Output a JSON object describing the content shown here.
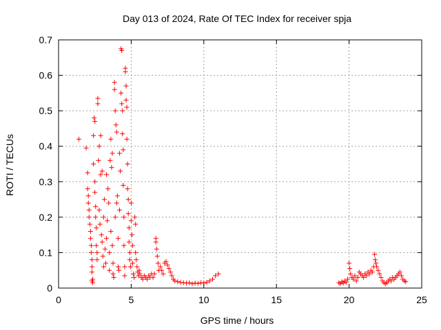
{
  "chart_data": {
    "type": "scatter",
    "title": "Day 013 of 2024, Rate Of TEC Index for receiver spja",
    "xlabel": "GPS time / hours",
    "ylabel": "ROTI / TECUs",
    "xlim": [
      0,
      25
    ],
    "ylim": [
      0,
      0.7
    ],
    "xticks": [
      0,
      5,
      10,
      15,
      20,
      25
    ],
    "yticks": [
      0,
      0.1,
      0.2,
      0.3,
      0.4,
      0.5,
      0.6,
      0.7
    ],
    "xtick_labels": [
      "0",
      "5",
      "10",
      "15",
      "20",
      "25"
    ],
    "ytick_labels": [
      "0",
      "0.1",
      "0.2",
      "0.3",
      "0.4",
      "0.5",
      "0.6",
      "0.7"
    ],
    "grid": true,
    "marker": "+",
    "color": "#ff0000",
    "points": [
      [
        1.4,
        0.42
      ],
      [
        1.9,
        0.395
      ],
      [
        2.0,
        0.325
      ],
      [
        2.0,
        0.28
      ],
      [
        2.05,
        0.26
      ],
      [
        2.05,
        0.24
      ],
      [
        2.1,
        0.22
      ],
      [
        2.1,
        0.2
      ],
      [
        2.15,
        0.18
      ],
      [
        2.2,
        0.16
      ],
      [
        2.2,
        0.14
      ],
      [
        2.25,
        0.12
      ],
      [
        2.25,
        0.1
      ],
      [
        2.3,
        0.08
      ],
      [
        2.3,
        0.06
      ],
      [
        2.3,
        0.045
      ],
      [
        2.3,
        0.02
      ],
      [
        2.35,
        0.015
      ],
      [
        2.35,
        0.025
      ],
      [
        2.4,
        0.35
      ],
      [
        2.4,
        0.43
      ],
      [
        2.45,
        0.48
      ],
      [
        2.5,
        0.47
      ],
      [
        2.5,
        0.3
      ],
      [
        2.5,
        0.27
      ],
      [
        2.55,
        0.23
      ],
      [
        2.55,
        0.2
      ],
      [
        2.6,
        0.17
      ],
      [
        2.6,
        0.12
      ],
      [
        2.65,
        0.1
      ],
      [
        2.65,
        0.08
      ],
      [
        2.7,
        0.52
      ],
      [
        2.7,
        0.535
      ],
      [
        2.75,
        0.36
      ],
      [
        2.8,
        0.4
      ],
      [
        2.8,
        0.22
      ],
      [
        2.85,
        0.18
      ],
      [
        2.9,
        0.43
      ],
      [
        2.9,
        0.32
      ],
      [
        2.95,
        0.15
      ],
      [
        3.0,
        0.33
      ],
      [
        3.0,
        0.13
      ],
      [
        3.05,
        0.09
      ],
      [
        3.1,
        0.06
      ],
      [
        3.1,
        0.2
      ],
      [
        3.15,
        0.25
      ],
      [
        3.2,
        0.11
      ],
      [
        3.25,
        0.07
      ],
      [
        3.3,
        0.14
      ],
      [
        3.3,
        0.32
      ],
      [
        3.35,
        0.19
      ],
      [
        3.4,
        0.28
      ],
      [
        3.45,
        0.24
      ],
      [
        3.5,
        0.1
      ],
      [
        3.5,
        0.05
      ],
      [
        3.55,
        0.36
      ],
      [
        3.6,
        0.42
      ],
      [
        3.6,
        0.16
      ],
      [
        3.65,
        0.34
      ],
      [
        3.7,
        0.38
      ],
      [
        3.7,
        0.12
      ],
      [
        3.75,
        0.07
      ],
      [
        3.75,
        0.04
      ],
      [
        3.8,
        0.03
      ],
      [
        3.85,
        0.56
      ],
      [
        3.85,
        0.58
      ],
      [
        3.9,
        0.5
      ],
      [
        3.9,
        0.2
      ],
      [
        3.95,
        0.46
      ],
      [
        4.0,
        0.44
      ],
      [
        4.0,
        0.24
      ],
      [
        4.05,
        0.26
      ],
      [
        4.1,
        0.14
      ],
      [
        4.1,
        0.06
      ],
      [
        4.15,
        0.05
      ],
      [
        4.2,
        0.38
      ],
      [
        4.2,
        0.22
      ],
      [
        4.25,
        0.33
      ],
      [
        4.3,
        0.55
      ],
      [
        4.3,
        0.675
      ],
      [
        4.35,
        0.67
      ],
      [
        4.35,
        0.52
      ],
      [
        4.4,
        0.5
      ],
      [
        4.4,
        0.435
      ],
      [
        4.45,
        0.39
      ],
      [
        4.45,
        0.29
      ],
      [
        4.5,
        0.2
      ],
      [
        4.5,
        0.12
      ],
      [
        4.55,
        0.06
      ],
      [
        4.55,
        0.035
      ],
      [
        4.6,
        0.62
      ],
      [
        4.6,
        0.61
      ],
      [
        4.65,
        0.57
      ],
      [
        4.65,
        0.53
      ],
      [
        4.7,
        0.51
      ],
      [
        4.7,
        0.42
      ],
      [
        4.75,
        0.35
      ],
      [
        4.75,
        0.28
      ],
      [
        4.8,
        0.25
      ],
      [
        4.8,
        0.21
      ],
      [
        4.85,
        0.17
      ],
      [
        4.85,
        0.13
      ],
      [
        4.9,
        0.1
      ],
      [
        4.9,
        0.08
      ],
      [
        4.95,
        0.06
      ],
      [
        5.0,
        0.24
      ],
      [
        5.0,
        0.19
      ],
      [
        5.05,
        0.15
      ],
      [
        5.1,
        0.12
      ],
      [
        5.1,
        0.07
      ],
      [
        5.15,
        0.04
      ],
      [
        5.2,
        0.03
      ],
      [
        5.25,
        0.2
      ],
      [
        5.3,
        0.18
      ],
      [
        5.3,
        0.1
      ],
      [
        5.35,
        0.08
      ],
      [
        5.4,
        0.06
      ],
      [
        5.45,
        0.045
      ],
      [
        5.5,
        0.035
      ],
      [
        5.55,
        0.05
      ],
      [
        5.6,
        0.04
      ],
      [
        5.7,
        0.03
      ],
      [
        5.8,
        0.025
      ],
      [
        5.9,
        0.035
      ],
      [
        6.0,
        0.03
      ],
      [
        6.1,
        0.025
      ],
      [
        6.2,
        0.035
      ],
      [
        6.3,
        0.03
      ],
      [
        6.4,
        0.04
      ],
      [
        6.5,
        0.03
      ],
      [
        6.6,
        0.04
      ],
      [
        6.7,
        0.14
      ],
      [
        6.7,
        0.13
      ],
      [
        6.75,
        0.11
      ],
      [
        6.8,
        0.09
      ],
      [
        6.85,
        0.07
      ],
      [
        6.9,
        0.05
      ],
      [
        7.0,
        0.06
      ],
      [
        7.1,
        0.05
      ],
      [
        7.2,
        0.04
      ],
      [
        7.3,
        0.07
      ],
      [
        7.4,
        0.075
      ],
      [
        7.5,
        0.065
      ],
      [
        7.6,
        0.055
      ],
      [
        7.7,
        0.045
      ],
      [
        7.8,
        0.035
      ],
      [
        7.9,
        0.025
      ],
      [
        8.0,
        0.02
      ],
      [
        8.2,
        0.018
      ],
      [
        8.4,
        0.016
      ],
      [
        8.6,
        0.015
      ],
      [
        8.8,
        0.014
      ],
      [
        9.0,
        0.015
      ],
      [
        9.2,
        0.012
      ],
      [
        9.4,
        0.014
      ],
      [
        9.6,
        0.013
      ],
      [
        9.8,
        0.015
      ],
      [
        10.0,
        0.014
      ],
      [
        10.2,
        0.016
      ],
      [
        10.4,
        0.02
      ],
      [
        10.6,
        0.025
      ],
      [
        10.8,
        0.035
      ],
      [
        11.0,
        0.04
      ],
      [
        19.3,
        0.015
      ],
      [
        19.4,
        0.012
      ],
      [
        19.5,
        0.018
      ],
      [
        19.6,
        0.014
      ],
      [
        19.7,
        0.02
      ],
      [
        19.8,
        0.016
      ],
      [
        19.9,
        0.025
      ],
      [
        20.0,
        0.07
      ],
      [
        20.05,
        0.055
      ],
      [
        20.1,
        0.04
      ],
      [
        20.2,
        0.03
      ],
      [
        20.3,
        0.025
      ],
      [
        20.4,
        0.035
      ],
      [
        20.5,
        0.02
      ],
      [
        20.6,
        0.03
      ],
      [
        20.7,
        0.045
      ],
      [
        20.8,
        0.04
      ],
      [
        20.9,
        0.035
      ],
      [
        21.0,
        0.03
      ],
      [
        21.1,
        0.04
      ],
      [
        21.2,
        0.035
      ],
      [
        21.3,
        0.045
      ],
      [
        21.4,
        0.04
      ],
      [
        21.5,
        0.05
      ],
      [
        21.6,
        0.045
      ],
      [
        21.7,
        0.06
      ],
      [
        21.75,
        0.095
      ],
      [
        21.8,
        0.08
      ],
      [
        21.85,
        0.07
      ],
      [
        21.9,
        0.06
      ],
      [
        22.0,
        0.05
      ],
      [
        22.1,
        0.04
      ],
      [
        22.2,
        0.03
      ],
      [
        22.3,
        0.02
      ],
      [
        22.4,
        0.015
      ],
      [
        22.5,
        0.012
      ],
      [
        22.6,
        0.015
      ],
      [
        22.7,
        0.02
      ],
      [
        22.8,
        0.025
      ],
      [
        22.9,
        0.02
      ],
      [
        23.0,
        0.03
      ],
      [
        23.1,
        0.025
      ],
      [
        23.2,
        0.03
      ],
      [
        23.3,
        0.035
      ],
      [
        23.4,
        0.04
      ],
      [
        23.5,
        0.045
      ],
      [
        23.6,
        0.035
      ],
      [
        23.7,
        0.025
      ],
      [
        23.8,
        0.02
      ],
      [
        23.9,
        0.018
      ]
    ]
  }
}
